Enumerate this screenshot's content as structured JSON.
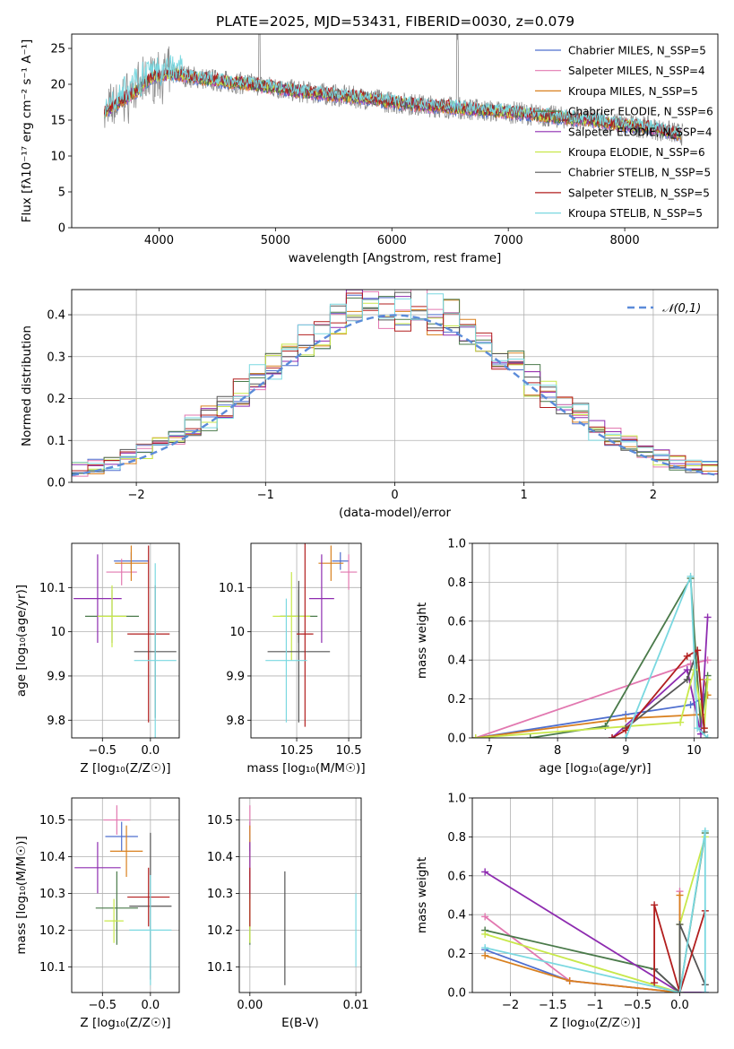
{
  "figure": {
    "title": "PLATE=2025, MJD=53431, FIBERID=0030, z=0.079"
  },
  "models": [
    {
      "label": "Chabrier MILES, N_SSP=5",
      "color": "#4f6fcf"
    },
    {
      "label": "Salpeter MILES, N_SSP=4",
      "color": "#e278b0"
    },
    {
      "label": "Kroupa MILES, N_SSP=5",
      "color": "#d9801f"
    },
    {
      "label": "Chabrier ELODIE, N_SSP=6",
      "color": "#4a7a4a"
    },
    {
      "label": "Salpeter ELODIE, N_SSP=4",
      "color": "#8e2cb0"
    },
    {
      "label": "Kroupa ELODIE, N_SSP=6",
      "color": "#c8e84a"
    },
    {
      "label": "Chabrier STELIB, N_SSP=5",
      "color": "#555555"
    },
    {
      "label": "Salpeter STELIB, N_SSP=5",
      "color": "#b21e1e"
    },
    {
      "label": "Kroupa STELIB, N_SSP=5",
      "color": "#7ad8e0"
    }
  ],
  "data_color": "#8c8c8c",
  "chart_data": [
    {
      "id": "spectrum",
      "type": "line",
      "xlabel": "wavelength [Angstrom, rest frame]",
      "ylabel": "Flux [fλ10⁻¹⁷ erg cm⁻² s⁻¹ A⁻¹]",
      "xlim": [
        3250,
        8800
      ],
      "ylim": [
        0,
        27
      ],
      "xticks": [
        4000,
        5000,
        6000,
        7000,
        8000
      ],
      "yticks": [
        0,
        5,
        10,
        15,
        20,
        25
      ],
      "series_continuum": {
        "x": [
          3530,
          3650,
          3800,
          3950,
          4100,
          4300,
          4500,
          4800,
          5000,
          5200,
          5500,
          5800,
          6000,
          6300,
          6500,
          6700,
          6900,
          7100,
          7300,
          7500,
          7700,
          8000,
          8200,
          8400,
          8500
        ],
        "y": [
          16,
          17.5,
          19,
          21,
          21.5,
          21,
          20.5,
          20,
          19.5,
          19,
          18.5,
          18,
          17.5,
          17,
          16.8,
          16.5,
          16.2,
          16,
          15.6,
          15.3,
          15,
          14.3,
          14,
          13.3,
          13
        ]
      },
      "legend": "top-right"
    },
    {
      "id": "residuals",
      "type": "histogram",
      "xlabel": "(data-model)/error",
      "ylabel": "Normed distribution",
      "xlim": [
        -2.5,
        2.5
      ],
      "ylim": [
        0,
        0.46
      ],
      "xticks": [
        -2,
        -1,
        0,
        1,
        2
      ],
      "yticks": [
        0.0,
        0.1,
        0.2,
        0.3,
        0.4
      ],
      "bin_width": 0.125,
      "reference_curve": {
        "name": "𝒩(0,1)",
        "color": "#5b8bd9",
        "style": "dashed"
      },
      "legend": "top-right",
      "grid": true
    },
    {
      "id": "age_vs_Z",
      "type": "errorbar",
      "xlabel": "Z [log₁₀(Z/Z☉)]",
      "ylabel": "age  [log₁₀(age/yr)]",
      "xlim": [
        -0.82,
        0.3
      ],
      "ylim": [
        9.76,
        10.2
      ],
      "xticks": [
        -0.5,
        0.0
      ],
      "yticks": [
        9.8,
        9.9,
        10.0,
        10.1
      ],
      "points": [
        {
          "x": -0.2,
          "y": 10.16,
          "xerr": 0.18,
          "yerr": 0.02
        },
        {
          "x": -0.3,
          "y": 10.135,
          "xerr": 0.16,
          "yerr": 0.03
        },
        {
          "x": -0.2,
          "y": 10.155,
          "xerr": 0.17,
          "yerr": 0.04
        },
        {
          "x": -0.4,
          "y": 10.035,
          "xerr": 0.28,
          "yerr": 0.06
        },
        {
          "x": -0.55,
          "y": 10.075,
          "xerr": 0.25,
          "yerr": 0.1
        },
        {
          "x": -0.4,
          "y": 10.035,
          "xerr": 0.15,
          "yerr": 0.07
        },
        {
          "x": 0.05,
          "y": 9.955,
          "xerr": 0.22,
          "yerr": 0.15
        },
        {
          "x": -0.02,
          "y": 9.995,
          "xerr": 0.22,
          "yerr": 0.2
        },
        {
          "x": 0.05,
          "y": 9.935,
          "xerr": 0.22,
          "yerr": 0.22
        }
      ],
      "grid": true
    },
    {
      "id": "age_vs_mass",
      "type": "errorbar",
      "xlabel": "mass [log₁₀(M/M☉)]",
      "ylabel": "",
      "xlim": [
        10.03,
        10.56
      ],
      "ylim": [
        9.76,
        10.2
      ],
      "xticks": [
        10.25,
        10.5
      ],
      "yticks": [
        9.8,
        9.9,
        10.0,
        10.1
      ],
      "points": [
        {
          "x": 10.46,
          "y": 10.16,
          "xerr": 0.04,
          "yerr": 0.02
        },
        {
          "x": 10.5,
          "y": 10.135,
          "xerr": 0.04,
          "yerr": 0.04
        },
        {
          "x": 10.415,
          "y": 10.155,
          "xerr": 0.06,
          "yerr": 0.04
        },
        {
          "x": 10.26,
          "y": 10.035,
          "xerr": 0.09,
          "yerr": 0.06
        },
        {
          "x": 10.37,
          "y": 10.075,
          "xerr": 0.06,
          "yerr": 0.1
        },
        {
          "x": 10.225,
          "y": 10.035,
          "xerr": 0.09,
          "yerr": 0.1
        },
        {
          "x": 10.26,
          "y": 9.955,
          "xerr": 0.15,
          "yerr": 0.16
        },
        {
          "x": 10.29,
          "y": 9.995,
          "xerr": 0.04,
          "yerr": 0.21
        },
        {
          "x": 10.2,
          "y": 9.935,
          "xerr": 0.1,
          "yerr": 0.14
        }
      ],
      "grid": true
    },
    {
      "id": "weight_vs_age",
      "type": "line",
      "xlabel": "age  [log₁₀(age/yr)]",
      "ylabel": "mass weight",
      "xlim": [
        6.75,
        10.35
      ],
      "ylim": [
        0,
        1
      ],
      "xticks": [
        7,
        8,
        9,
        10
      ],
      "yticks": [
        0.0,
        0.2,
        0.4,
        0.6,
        0.8,
        1.0
      ],
      "series": [
        {
          "x": [
            6.8,
            9.0,
            9.95,
            10.15
          ],
          "y": [
            0.0,
            0.12,
            0.17,
            0.21
          ]
        },
        {
          "x": [
            6.8,
            9.95,
            10.2
          ],
          "y": [
            0.0,
            0.38,
            0.4
          ]
        },
        {
          "x": [
            6.8,
            9.0,
            10.1,
            10.15,
            10.2
          ],
          "y": [
            0.0,
            0.1,
            0.12,
            0.3,
            0.22
          ]
        },
        {
          "x": [
            7.6,
            8.7,
            9.95,
            10.1,
            10.2
          ],
          "y": [
            0.0,
            0.06,
            0.82,
            0.05,
            0.32
          ]
        },
        {
          "x": [
            8.8,
            9.9,
            10.1,
            10.2
          ],
          "y": [
            0.0,
            0.35,
            0.02,
            0.62
          ]
        },
        {
          "x": [
            6.8,
            9.8,
            10.0,
            10.15,
            10.2
          ],
          "y": [
            0.0,
            0.08,
            0.35,
            0.05,
            0.3
          ]
        },
        {
          "x": [
            9.0,
            9.9,
            10.05,
            10.15
          ],
          "y": [
            0.05,
            0.3,
            0.45,
            0.03
          ]
        },
        {
          "x": [
            8.8,
            9.0,
            9.9,
            10.05,
            10.15
          ],
          "y": [
            0.0,
            0.04,
            0.42,
            0.45,
            0.05
          ]
        },
        {
          "x": [
            9.0,
            9.95,
            10.05,
            10.2
          ],
          "y": [
            0.0,
            0.83,
            0.05,
            0.0
          ]
        }
      ],
      "grid": true
    },
    {
      "id": "mass_vs_Z",
      "type": "errorbar",
      "xlabel": "Z [log₁₀(Z/Z☉)]",
      "ylabel": "mass [log₁₀(M/M☉)]",
      "xlim": [
        -0.82,
        0.3
      ],
      "ylim": [
        10.03,
        10.56
      ],
      "xticks": [
        -0.5,
        0.0
      ],
      "yticks": [
        10.1,
        10.2,
        10.3,
        10.4,
        10.5
      ],
      "points": [
        {
          "x": -0.3,
          "y": 10.455,
          "xerr": 0.17,
          "yerr": 0.04
        },
        {
          "x": -0.35,
          "y": 10.5,
          "xerr": 0.14,
          "yerr": 0.04
        },
        {
          "x": -0.25,
          "y": 10.415,
          "xerr": 0.17,
          "yerr": 0.07
        },
        {
          "x": -0.35,
          "y": 10.26,
          "xerr": 0.22,
          "yerr": 0.1
        },
        {
          "x": -0.55,
          "y": 10.37,
          "xerr": 0.24,
          "yerr": 0.07
        },
        {
          "x": -0.38,
          "y": 10.225,
          "xerr": 0.1,
          "yerr": 0.06
        },
        {
          "x": 0.0,
          "y": 10.265,
          "xerr": 0.22,
          "yerr": 0.2
        },
        {
          "x": -0.02,
          "y": 10.29,
          "xerr": 0.22,
          "yerr": 0.08
        },
        {
          "x": 0.0,
          "y": 10.2,
          "xerr": 0.22,
          "yerr": 0.15
        }
      ],
      "grid": true
    },
    {
      "id": "mass_vs_ebv",
      "type": "errorbar",
      "xlabel": "E(B-V)",
      "ylabel": "",
      "xlim": [
        -0.001,
        0.0105
      ],
      "ylim": [
        10.03,
        10.56
      ],
      "xticks": [
        0.0,
        0.01
      ],
      "xticklabels": [
        "0.00",
        "0.01"
      ],
      "yticks": [
        10.1,
        10.2,
        10.3,
        10.4,
        10.5
      ],
      "points": [
        {
          "x": 0.0,
          "y": 10.455,
          "xerr": 0.0,
          "yerr": 0.04
        },
        {
          "x": 0.0,
          "y": 10.5,
          "xerr": 0.0,
          "yerr": 0.04
        },
        {
          "x": 0.0,
          "y": 10.415,
          "xerr": 0.0,
          "yerr": 0.07
        },
        {
          "x": 0.0,
          "y": 10.26,
          "xerr": 0.0,
          "yerr": 0.1
        },
        {
          "x": 0.0,
          "y": 10.37,
          "xerr": 0.0,
          "yerr": 0.07
        },
        {
          "x": 0.0,
          "y": 10.225,
          "xerr": 0.0,
          "yerr": 0.06
        },
        {
          "x": 0.0033,
          "y": 10.205,
          "xerr": 0.0,
          "yerr": 0.155
        },
        {
          "x": 0.0,
          "y": 10.29,
          "xerr": 0.0,
          "yerr": 0.08
        },
        {
          "x": 0.01,
          "y": 10.2,
          "xerr": 0.0,
          "yerr": 0.1
        }
      ],
      "grid": true
    },
    {
      "id": "weight_vs_Z",
      "type": "line",
      "xlabel": "Z [log₁₀(Z/Z☉)]",
      "ylabel": "mass weight",
      "xlim": [
        -2.45,
        0.45
      ],
      "ylim": [
        0,
        1
      ],
      "xticks": [
        -2.0,
        -1.5,
        -1.0,
        -0.5,
        0.0
      ],
      "yticks": [
        0.0,
        0.2,
        0.4,
        0.6,
        0.8,
        1.0
      ],
      "series": [
        {
          "x": [
            -2.3,
            -1.3,
            0.0,
            0.3
          ],
          "y": [
            0.22,
            0.06,
            0.0,
            0.0
          ]
        },
        {
          "x": [
            -2.3,
            -1.3,
            0.0,
            0.0
          ],
          "y": [
            0.39,
            0.06,
            0.0,
            0.52
          ]
        },
        {
          "x": [
            -2.3,
            -1.3,
            0.0,
            0.0
          ],
          "y": [
            0.19,
            0.06,
            0.0,
            0.5
          ]
        },
        {
          "x": [
            -2.3,
            -0.3,
            0.0,
            0.3
          ],
          "y": [
            0.32,
            0.12,
            0.0,
            0.82
          ]
        },
        {
          "x": [
            -2.3,
            0.0,
            0.3
          ],
          "y": [
            0.62,
            0.0,
            0.0
          ]
        },
        {
          "x": [
            -2.3,
            0.0,
            0.0,
            0.3
          ],
          "y": [
            0.3,
            0.0,
            0.35,
            0.8
          ]
        },
        {
          "x": [
            -0.3,
            0.0,
            0.0,
            0.3
          ],
          "y": [
            0.12,
            0.0,
            0.35,
            0.04
          ]
        },
        {
          "x": [
            -0.3,
            -0.3,
            0.0,
            0.3
          ],
          "y": [
            0.05,
            0.45,
            0.0,
            0.42
          ]
        },
        {
          "x": [
            -2.3,
            0.0,
            0.3,
            0.3
          ],
          "y": [
            0.23,
            0.0,
            0.83,
            0.0
          ]
        }
      ],
      "grid": true
    }
  ]
}
